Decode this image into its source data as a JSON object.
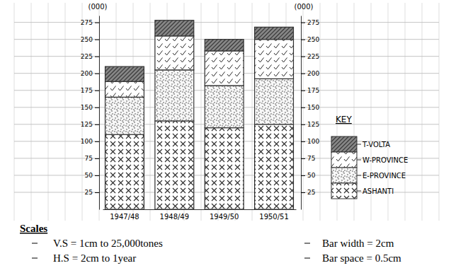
{
  "chart_data": {
    "type": "bar",
    "stacked": true,
    "grid": true,
    "legend": "right",
    "legend_title": "KEY",
    "y_label": "(000)",
    "y2_label": "(000)",
    "categories": [
      "1947/48",
      "1948/49",
      "1949/50",
      "1950/51"
    ],
    "series": [
      {
        "name": "ASHANTI",
        "color": "#2b2b2b",
        "values": [
          110,
          130,
          120,
          125
        ]
      },
      {
        "name": "E-PROVINCE",
        "color": "#3a3a3a",
        "values": [
          55,
          75,
          62,
          67
        ]
      },
      {
        "name": "W-PROVINCE",
        "color": "#2b2b2b",
        "values": [
          23,
          50,
          51,
          58
        ]
      },
      {
        "name": "T-VOLTA",
        "color": "#333333",
        "values": [
          22,
          23,
          17,
          18
        ]
      }
    ],
    "ylim": [
      0,
      285
    ],
    "yticks": [
      25,
      50,
      75,
      100,
      125,
      150,
      175,
      200,
      225,
      250,
      275
    ],
    "y2lim": [
      0,
      285
    ],
    "y2ticks": [
      25,
      50,
      75,
      100,
      125,
      150,
      175,
      200,
      225,
      250,
      275
    ],
    "annotations": {
      "title": "Scales",
      "items": [
        "V.S = 1cm to 25,000tones",
        "H.S = 2cm to 1year",
        "Bar width = 2cm",
        "Bar space = 0.5cm"
      ]
    }
  }
}
